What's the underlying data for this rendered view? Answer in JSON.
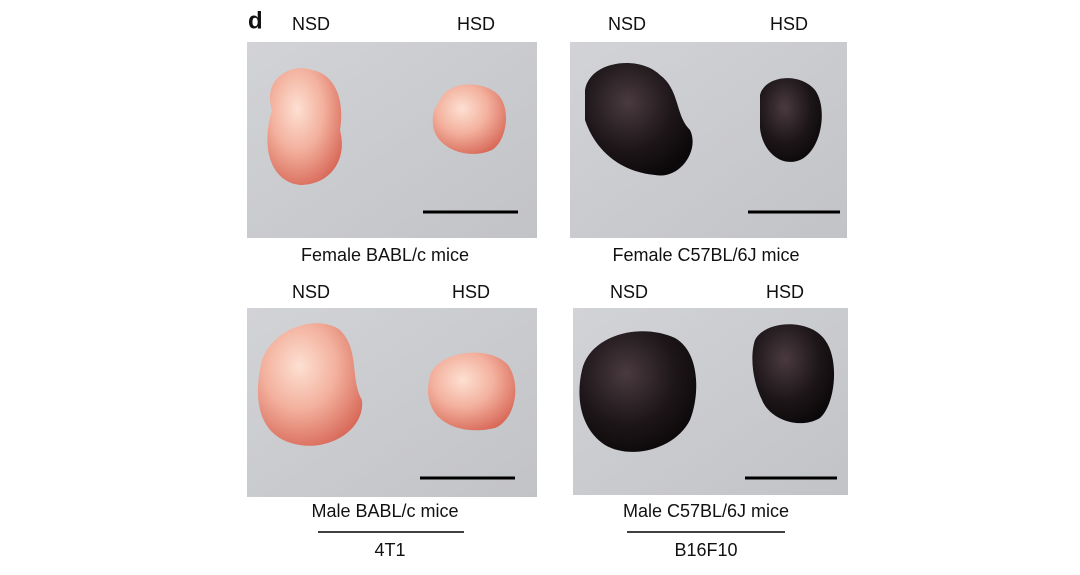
{
  "panel_label": "d",
  "panels": [
    {
      "labels": [
        "NSD",
        "HSD"
      ],
      "caption": "Female BABL/c mice"
    },
    {
      "labels": [
        "NSD",
        "HSD"
      ],
      "caption": "Female C57BL/6J mice"
    },
    {
      "labels": [
        "NSD",
        "HSD"
      ],
      "caption": "Male BABL/c mice"
    },
    {
      "labels": [
        "NSD",
        "HSD"
      ],
      "caption": "Male C57BL/6J mice"
    }
  ],
  "groups": [
    {
      "label": "4T1"
    },
    {
      "label": "B16F10"
    }
  ]
}
